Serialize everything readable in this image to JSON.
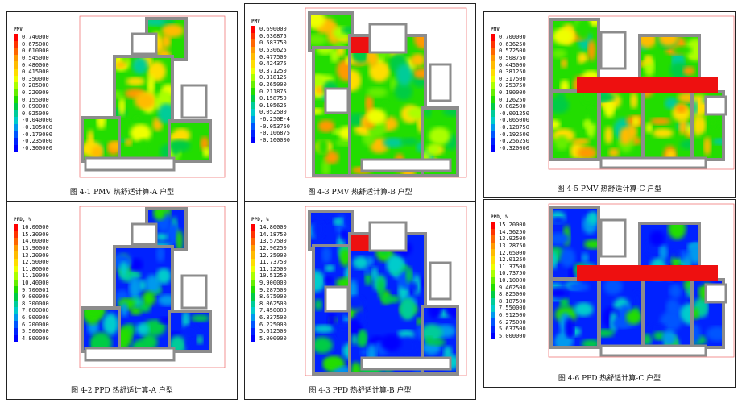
{
  "palette": [
    "#ff0000",
    "#ff3300",
    "#ff6600",
    "#ff9900",
    "#ffbb00",
    "#ffdd00",
    "#eeff00",
    "#aaff00",
    "#66ee00",
    "#22dd00",
    "#00cc44",
    "#00cc99",
    "#00cccc",
    "#0099ee",
    "#0055ff",
    "#0022ff",
    "#0000ff"
  ],
  "panels": [
    {
      "id": "pmv-a",
      "plan": "A",
      "kind": "PMV",
      "legend_title": "PMV",
      "values": [
        "0.740000",
        "0.675000",
        "0.610000",
        "0.545000",
        "0.480000",
        "0.415000",
        "0.350000",
        "0.285000",
        "0.220000",
        "0.155000",
        "0.090000",
        "0.025000",
        "-0.040000",
        "-0.105000",
        "-0.170000",
        "-0.235000",
        "-0.300000"
      ],
      "caption": "图 4-1 PMV 热舒适计算-A 户型"
    },
    {
      "id": "pmv-b",
      "plan": "B",
      "kind": "PMV",
      "legend_title": "PMV",
      "values": [
        "0.690000",
        "0.636875",
        "0.583750",
        "0.530625",
        "0.477500",
        "0.424375",
        "0.371250",
        "0.318125",
        "0.265000",
        "0.211875",
        "0.158750",
        "0.105625",
        "0.052500",
        "-6.250E-4",
        "-0.053750",
        "-0.106875",
        "-0.160000"
      ],
      "caption": "图 4-3 PMV 热舒适计算-B 户型"
    },
    {
      "id": "pmv-c",
      "plan": "C",
      "kind": "PMV",
      "legend_title": "PMV",
      "values": [
        "0.700000",
        "0.636250",
        "0.572500",
        "0.508750",
        "0.445000",
        "0.381250",
        "0.317500",
        "0.253750",
        "0.190000",
        "0.126250",
        "0.062500",
        "-0.001250",
        "-0.065000",
        "-0.128750",
        "-0.192500",
        "-0.256250",
        "-0.320000"
      ],
      "caption": "图 4-5 PMV 热舒适计算-C 户型"
    },
    {
      "id": "ppd-a",
      "plan": "A",
      "kind": "PPD",
      "legend_title": "PPD, %",
      "values": [
        "16.00000",
        "15.30000",
        "14.60000",
        "13.90000",
        "13.20000",
        "12.50000",
        "11.80000",
        "11.10000",
        "10.40000",
        "9.700001",
        "9.000000",
        "8.300000",
        "7.600000",
        "6.900000",
        "6.200000",
        "5.500000",
        "4.800000"
      ],
      "caption": "图 4-2 PPD 热舒适计算-A 户型"
    },
    {
      "id": "ppd-b",
      "plan": "B",
      "kind": "PPD",
      "legend_title": "PPD, %",
      "values": [
        "14.80000",
        "14.18750",
        "13.57500",
        "12.96250",
        "12.35000",
        "11.73750",
        "11.12500",
        "10.51250",
        "9.900000",
        "9.287500",
        "8.675000",
        "8.062500",
        "7.450000",
        "6.837500",
        "6.225000",
        "5.612500",
        "5.000000"
      ],
      "caption": "图 4-3 PPD 热舒适计算-B 户型"
    },
    {
      "id": "ppd-c",
      "plan": "C",
      "kind": "PPD",
      "legend_title": "PPD, %",
      "values": [
        "15.20000",
        "14.56250",
        "13.92500",
        "13.28750",
        "12.65000",
        "12.01250",
        "11.37500",
        "10.73750",
        "10.10000",
        "9.462500",
        "8.825000",
        "8.187500",
        "7.550000",
        "6.912500",
        "6.275000",
        "5.637500",
        "5.000000"
      ],
      "caption": "图 4-6 PPD 热舒适计算-C 户型"
    }
  ]
}
